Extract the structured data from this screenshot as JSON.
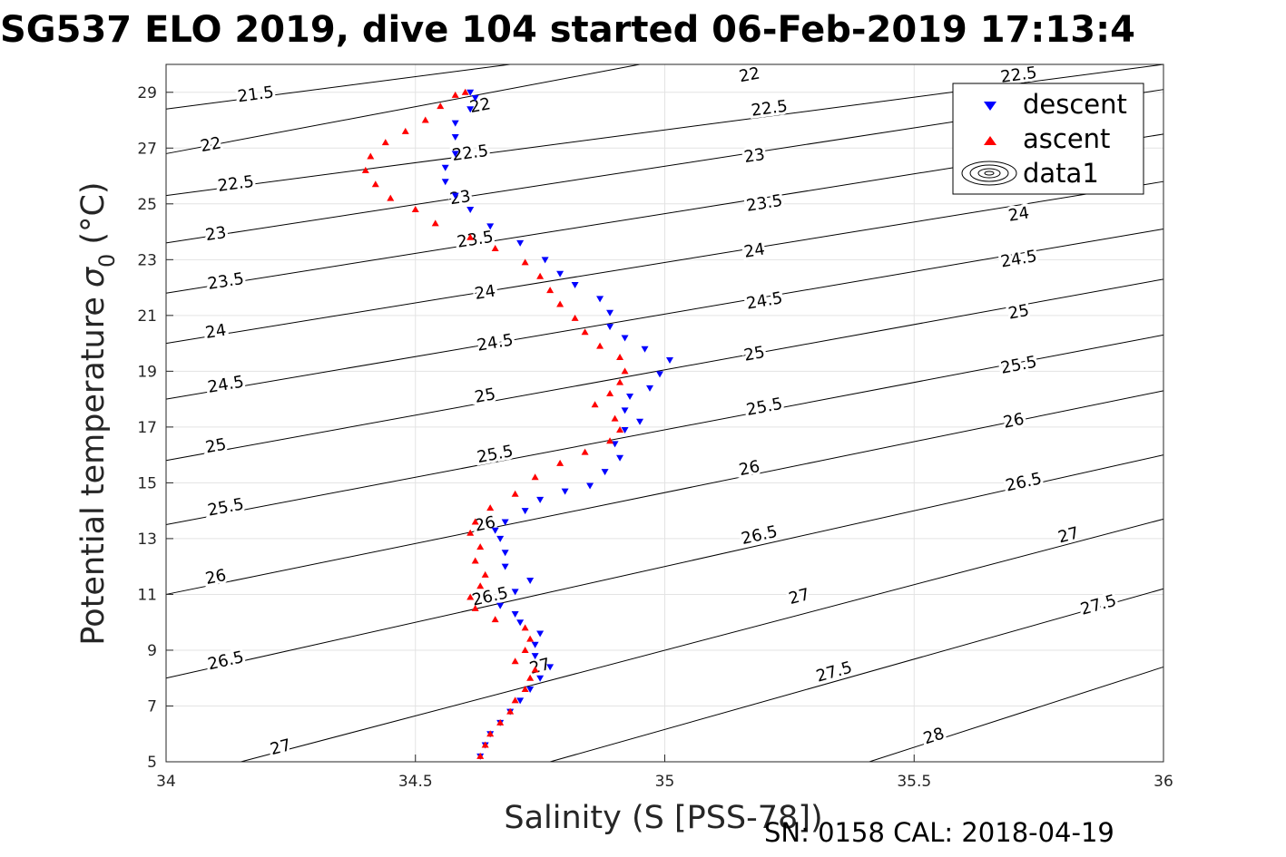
{
  "chart_data": {
    "type": "scatter",
    "title": "SG537 ELO 2019, dive 104 started 06-Feb-2019 17:13:4",
    "xlabel": "Salinity (S [PSS-78])",
    "ylabel": "Potential temperature",
    "ylabel_symbol": "σ",
    "ylabel_subscript": "0",
    "ylabel_unit": "(°C)",
    "xlim": [
      34,
      36
    ],
    "ylim": [
      5,
      30
    ],
    "x_ticks": [
      "34",
      "34.5",
      "35",
      "35.5",
      "36"
    ],
    "y_ticks": [
      "5",
      "7",
      "9",
      "11",
      "13",
      "15",
      "17",
      "19",
      "21",
      "23",
      "25",
      "27",
      "29"
    ],
    "grid": true,
    "legend_position": "top-right",
    "footer": "SN: 0158  CAL: 2018-04-19",
    "series": [
      {
        "name": "descent",
        "marker": "triangle-down",
        "color": "#0000ff",
        "points": [
          [
            34.63,
            5.2
          ],
          [
            34.64,
            5.6
          ],
          [
            34.65,
            6.0
          ],
          [
            34.67,
            6.4
          ],
          [
            34.69,
            6.8
          ],
          [
            34.71,
            7.2
          ],
          [
            34.73,
            7.6
          ],
          [
            34.75,
            8.0
          ],
          [
            34.77,
            8.4
          ],
          [
            34.74,
            8.8
          ],
          [
            34.74,
            9.2
          ],
          [
            34.75,
            9.6
          ],
          [
            34.71,
            10.0
          ],
          [
            34.7,
            10.3
          ],
          [
            34.67,
            10.6
          ],
          [
            34.7,
            11.1
          ],
          [
            34.73,
            11.5
          ],
          [
            34.68,
            12.0
          ],
          [
            34.68,
            12.5
          ],
          [
            34.67,
            13.0
          ],
          [
            34.66,
            13.3
          ],
          [
            34.68,
            13.6
          ],
          [
            34.72,
            14.0
          ],
          [
            34.75,
            14.4
          ],
          [
            34.8,
            14.7
          ],
          [
            34.85,
            14.9
          ],
          [
            34.88,
            15.4
          ],
          [
            34.91,
            15.9
          ],
          [
            34.9,
            16.4
          ],
          [
            34.92,
            16.9
          ],
          [
            34.95,
            17.2
          ],
          [
            34.92,
            17.6
          ],
          [
            34.93,
            18.1
          ],
          [
            34.97,
            18.4
          ],
          [
            34.99,
            18.9
          ],
          [
            35.01,
            19.4
          ],
          [
            34.96,
            19.8
          ],
          [
            34.92,
            20.2
          ],
          [
            34.89,
            20.6
          ],
          [
            34.89,
            21.1
          ],
          [
            34.87,
            21.6
          ],
          [
            34.82,
            22.1
          ],
          [
            34.79,
            22.5
          ],
          [
            34.76,
            23.0
          ],
          [
            34.71,
            23.6
          ],
          [
            34.65,
            24.2
          ],
          [
            34.61,
            24.8
          ],
          [
            34.58,
            25.3
          ],
          [
            34.56,
            25.8
          ],
          [
            34.56,
            26.3
          ],
          [
            34.58,
            26.8
          ],
          [
            34.58,
            27.4
          ],
          [
            34.58,
            27.9
          ],
          [
            34.61,
            28.4
          ],
          [
            34.62,
            28.8
          ],
          [
            34.61,
            29.0
          ]
        ]
      },
      {
        "name": "ascent",
        "marker": "triangle-up",
        "color": "#ff0000",
        "points": [
          [
            34.63,
            5.2
          ],
          [
            34.64,
            5.6
          ],
          [
            34.65,
            6.0
          ],
          [
            34.67,
            6.4
          ],
          [
            34.69,
            6.8
          ],
          [
            34.7,
            7.2
          ],
          [
            34.72,
            7.6
          ],
          [
            34.73,
            8.0
          ],
          [
            34.74,
            8.3
          ],
          [
            34.7,
            8.6
          ],
          [
            34.72,
            9.0
          ],
          [
            34.73,
            9.4
          ],
          [
            34.72,
            9.8
          ],
          [
            34.66,
            10.1
          ],
          [
            34.62,
            10.5
          ],
          [
            34.61,
            10.9
          ],
          [
            34.63,
            11.3
          ],
          [
            34.64,
            11.7
          ],
          [
            34.62,
            12.2
          ],
          [
            34.63,
            12.7
          ],
          [
            34.61,
            13.2
          ],
          [
            34.62,
            13.6
          ],
          [
            34.65,
            14.1
          ],
          [
            34.7,
            14.6
          ],
          [
            34.74,
            15.2
          ],
          [
            34.79,
            15.7
          ],
          [
            34.84,
            16.1
          ],
          [
            34.89,
            16.5
          ],
          [
            34.91,
            16.9
          ],
          [
            34.9,
            17.3
          ],
          [
            34.86,
            17.8
          ],
          [
            34.89,
            18.2
          ],
          [
            34.91,
            18.6
          ],
          [
            34.92,
            19.0
          ],
          [
            34.91,
            19.5
          ],
          [
            34.87,
            19.9
          ],
          [
            34.84,
            20.4
          ],
          [
            34.82,
            20.9
          ],
          [
            34.79,
            21.4
          ],
          [
            34.77,
            21.9
          ],
          [
            34.75,
            22.4
          ],
          [
            34.72,
            22.9
          ],
          [
            34.66,
            23.4
          ],
          [
            34.61,
            23.8
          ],
          [
            34.54,
            24.3
          ],
          [
            34.5,
            24.8
          ],
          [
            34.45,
            25.2
          ],
          [
            34.42,
            25.7
          ],
          [
            34.4,
            26.2
          ],
          [
            34.41,
            26.7
          ],
          [
            34.44,
            27.2
          ],
          [
            34.48,
            27.6
          ],
          [
            34.52,
            28.0
          ],
          [
            34.55,
            28.5
          ],
          [
            34.58,
            28.9
          ],
          [
            34.6,
            29.0
          ]
        ]
      },
      {
        "name": "data1",
        "marker": "contour",
        "color": "#000000"
      }
    ],
    "contours": [
      {
        "sigma": "21.5",
        "x0": 34.0,
        "y0": 28.4,
        "x1": 34.69,
        "y1": 30.0,
        "lx": 34.18,
        "ly": 28.9
      },
      {
        "sigma": "22",
        "x0": 34.0,
        "y0": 26.8,
        "x1": 34.95,
        "y1": 30.0,
        "lx": 34.09,
        "ly": 27.1
      },
      {
        "sigma": "22",
        "x0": 34.0,
        "y0": 26.8,
        "x1": 34.95,
        "y1": 30.0,
        "lx": 34.63,
        "ly": 28.5
      },
      {
        "sigma": "22",
        "x0": 34.0,
        "y0": 26.8,
        "x1": 34.95,
        "y1": 30.0,
        "lx": 35.17,
        "ly": 29.6
      },
      {
        "sigma": "22.5",
        "x0": 34.0,
        "y0": 25.3,
        "x1": 36.0,
        "y1": 30.0,
        "lx": 34.14,
        "ly": 25.7
      },
      {
        "sigma": "22.5",
        "x0": 34.0,
        "y0": 25.3,
        "x1": 36.0,
        "y1": 30.0,
        "lx": 34.61,
        "ly": 26.8
      },
      {
        "sigma": "22.5",
        "x0": 34.0,
        "y0": 25.3,
        "x1": 36.0,
        "y1": 30.0,
        "lx": 35.21,
        "ly": 28.4
      },
      {
        "sigma": "22.5",
        "x0": 34.0,
        "y0": 25.3,
        "x1": 36.0,
        "y1": 30.0,
        "lx": 35.71,
        "ly": 29.6
      },
      {
        "sigma": "23",
        "x0": 34.0,
        "y0": 23.6,
        "x1": 36.0,
        "y1": 29.1,
        "lx": 34.1,
        "ly": 23.9
      },
      {
        "sigma": "23",
        "x0": 34.0,
        "y0": 23.6,
        "x1": 36.0,
        "y1": 29.1,
        "lx": 34.59,
        "ly": 25.2
      },
      {
        "sigma": "23",
        "x0": 34.0,
        "y0": 23.6,
        "x1": 36.0,
        "y1": 29.1,
        "lx": 35.18,
        "ly": 26.7
      },
      {
        "sigma": "23.5",
        "x0": 34.0,
        "y0": 21.8,
        "x1": 36.0,
        "y1": 27.5,
        "lx": 34.12,
        "ly": 22.2
      },
      {
        "sigma": "23.5",
        "x0": 34.0,
        "y0": 21.8,
        "x1": 36.0,
        "y1": 27.5,
        "lx": 34.62,
        "ly": 23.7
      },
      {
        "sigma": "23.5",
        "x0": 34.0,
        "y0": 21.8,
        "x1": 36.0,
        "y1": 27.5,
        "lx": 35.2,
        "ly": 25.0
      },
      {
        "sigma": "24",
        "x0": 34.0,
        "y0": 20.0,
        "x1": 36.0,
        "y1": 25.8,
        "lx": 34.1,
        "ly": 20.4
      },
      {
        "sigma": "24",
        "x0": 34.0,
        "y0": 20.0,
        "x1": 36.0,
        "y1": 25.8,
        "lx": 34.64,
        "ly": 21.8
      },
      {
        "sigma": "24",
        "x0": 34.0,
        "y0": 20.0,
        "x1": 36.0,
        "y1": 25.8,
        "lx": 35.18,
        "ly": 23.3
      },
      {
        "sigma": "24",
        "x0": 34.0,
        "y0": 20.0,
        "x1": 36.0,
        "y1": 25.8,
        "lx": 35.71,
        "ly": 24.6
      },
      {
        "sigma": "24.5",
        "x0": 34.0,
        "y0": 18.0,
        "x1": 36.0,
        "y1": 24.1,
        "lx": 34.12,
        "ly": 18.5
      },
      {
        "sigma": "24.5",
        "x0": 34.0,
        "y0": 18.0,
        "x1": 36.0,
        "y1": 24.1,
        "lx": 34.66,
        "ly": 20.0
      },
      {
        "sigma": "24.5",
        "x0": 34.0,
        "y0": 18.0,
        "x1": 36.0,
        "y1": 24.1,
        "lx": 35.2,
        "ly": 21.5
      },
      {
        "sigma": "24.5",
        "x0": 34.0,
        "y0": 18.0,
        "x1": 36.0,
        "y1": 24.1,
        "lx": 35.71,
        "ly": 23.0
      },
      {
        "sigma": "25",
        "x0": 34.0,
        "y0": 15.8,
        "x1": 36.0,
        "y1": 22.3,
        "lx": 34.1,
        "ly": 16.3
      },
      {
        "sigma": "25",
        "x0": 34.0,
        "y0": 15.8,
        "x1": 36.0,
        "y1": 22.3,
        "lx": 34.64,
        "ly": 18.1
      },
      {
        "sigma": "25",
        "x0": 34.0,
        "y0": 15.8,
        "x1": 36.0,
        "y1": 22.3,
        "lx": 35.18,
        "ly": 19.6
      },
      {
        "sigma": "25",
        "x0": 34.0,
        "y0": 15.8,
        "x1": 36.0,
        "y1": 22.3,
        "lx": 35.71,
        "ly": 21.1
      },
      {
        "sigma": "25.5",
        "x0": 34.0,
        "y0": 13.5,
        "x1": 36.0,
        "y1": 20.3,
        "lx": 34.12,
        "ly": 14.1
      },
      {
        "sigma": "25.5",
        "x0": 34.0,
        "y0": 13.5,
        "x1": 36.0,
        "y1": 20.3,
        "lx": 34.66,
        "ly": 16.0
      },
      {
        "sigma": "25.5",
        "x0": 34.0,
        "y0": 13.5,
        "x1": 36.0,
        "y1": 20.3,
        "lx": 35.2,
        "ly": 17.7
      },
      {
        "sigma": "25.5",
        "x0": 34.0,
        "y0": 13.5,
        "x1": 36.0,
        "y1": 20.3,
        "lx": 35.71,
        "ly": 19.2
      },
      {
        "sigma": "26",
        "x0": 34.0,
        "y0": 11.0,
        "x1": 36.0,
        "y1": 18.3,
        "lx": 34.1,
        "ly": 11.6
      },
      {
        "sigma": "26",
        "x0": 34.0,
        "y0": 11.0,
        "x1": 36.0,
        "y1": 18.3,
        "lx": 34.64,
        "ly": 13.5
      },
      {
        "sigma": "26",
        "x0": 34.0,
        "y0": 11.0,
        "x1": 36.0,
        "y1": 18.3,
        "lx": 35.17,
        "ly": 15.5
      },
      {
        "sigma": "26",
        "x0": 34.0,
        "y0": 11.0,
        "x1": 36.0,
        "y1": 18.3,
        "lx": 35.7,
        "ly": 17.2
      },
      {
        "sigma": "26.5",
        "x0": 34.0,
        "y0": 8.0,
        "x1": 36.0,
        "y1": 16.0,
        "lx": 34.12,
        "ly": 8.6
      },
      {
        "sigma": "26.5",
        "x0": 34.0,
        "y0": 8.0,
        "x1": 36.0,
        "y1": 16.0,
        "lx": 34.65,
        "ly": 10.9
      },
      {
        "sigma": "26.5",
        "x0": 34.0,
        "y0": 8.0,
        "x1": 36.0,
        "y1": 16.0,
        "lx": 35.19,
        "ly": 13.1
      },
      {
        "sigma": "26.5",
        "x0": 34.0,
        "y0": 8.0,
        "x1": 36.0,
        "y1": 16.0,
        "lx": 35.72,
        "ly": 15.0
      },
      {
        "sigma": "27",
        "x0": 34.15,
        "y0": 5.0,
        "x1": 36.0,
        "y1": 13.7,
        "lx": 34.23,
        "ly": 5.5
      },
      {
        "sigma": "27",
        "x0": 34.15,
        "y0": 5.0,
        "x1": 36.0,
        "y1": 13.7,
        "lx": 34.75,
        "ly": 8.4
      },
      {
        "sigma": "27",
        "x0": 34.15,
        "y0": 5.0,
        "x1": 36.0,
        "y1": 13.7,
        "lx": 35.27,
        "ly": 10.9
      },
      {
        "sigma": "27",
        "x0": 34.15,
        "y0": 5.0,
        "x1": 36.0,
        "y1": 13.7,
        "lx": 35.81,
        "ly": 13.1
      },
      {
        "sigma": "27.5",
        "x0": 34.77,
        "y0": 5.0,
        "x1": 36.0,
        "y1": 11.2,
        "lx": 35.34,
        "ly": 8.2
      },
      {
        "sigma": "27.5",
        "x0": 34.77,
        "y0": 5.0,
        "x1": 36.0,
        "y1": 11.2,
        "lx": 35.87,
        "ly": 10.6
      },
      {
        "sigma": "28",
        "x0": 35.41,
        "y0": 5.0,
        "x1": 36.0,
        "y1": 8.4,
        "lx": 35.54,
        "ly": 5.9
      }
    ]
  }
}
